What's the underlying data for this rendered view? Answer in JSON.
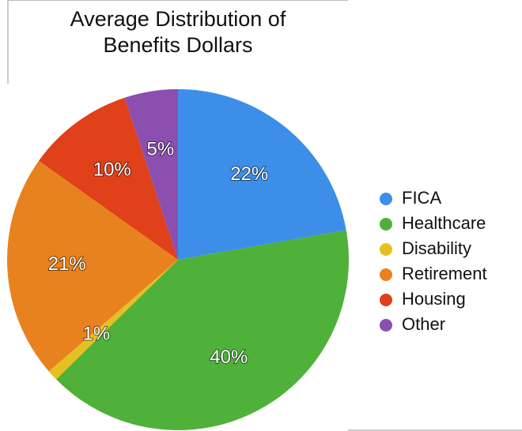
{
  "chart_data": {
    "type": "pie",
    "title": "Average Distribution of Benefits Dollars",
    "categories": [
      "FICA",
      "Healthcare",
      "Disability",
      "Retirement",
      "Housing",
      "Other"
    ],
    "values": [
      22,
      40,
      1,
      21,
      10,
      5
    ],
    "value_labels": [
      "22%",
      "40%",
      "1%",
      "21%",
      "10%",
      "5%"
    ],
    "colors": [
      "#3d8ee8",
      "#4fb13a",
      "#e6c020",
      "#e8821e",
      "#e0401a",
      "#8b4fb0"
    ],
    "legend": "right"
  }
}
